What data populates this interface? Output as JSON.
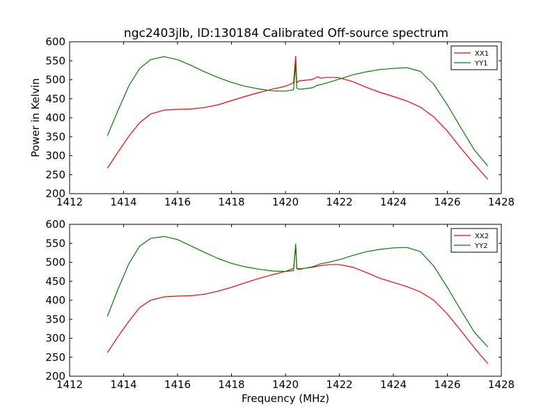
{
  "title": "ngc2403jlb, ID:130184 Calibrated Off-source spectrum",
  "colors": {
    "xx": "#ff0000",
    "yy": "#008000"
  },
  "chart_data": [
    {
      "type": "line",
      "ylabel": "Power in Kelvin",
      "xlabel": "",
      "xlim": [
        1412,
        1428
      ],
      "ylim": [
        200,
        600
      ],
      "xticks": [
        1412,
        1414,
        1416,
        1418,
        1420,
        1422,
        1424,
        1426,
        1428
      ],
      "yticks": [
        200,
        250,
        300,
        350,
        400,
        450,
        500,
        550,
        600
      ],
      "grid": false,
      "legend_position": "top-right",
      "series": [
        {
          "name": "XX1",
          "color": "#ff0000",
          "x": [
            1413.4,
            1413.8,
            1414.2,
            1414.6,
            1415.0,
            1415.5,
            1416.0,
            1416.5,
            1417.0,
            1417.5,
            1418.0,
            1418.5,
            1419.0,
            1419.5,
            1420.0,
            1420.3,
            1420.38,
            1420.42,
            1420.5,
            1420.8,
            1421.0,
            1421.2,
            1421.3,
            1421.5,
            1421.8,
            1422.0,
            1422.5,
            1423.0,
            1423.5,
            1424.0,
            1424.5,
            1425.0,
            1425.5,
            1426.0,
            1426.5,
            1427.0,
            1427.5
          ],
          "y": [
            267,
            310,
            352,
            387,
            410,
            420,
            422,
            423,
            427,
            434,
            445,
            456,
            466,
            475,
            483,
            492,
            562,
            492,
            497,
            499,
            501,
            508,
            504,
            506,
            506,
            505,
            495,
            480,
            467,
            456,
            444,
            428,
            402,
            365,
            320,
            278,
            238
          ]
        },
        {
          "name": "YY1",
          "color": "#008000",
          "x": [
            1413.4,
            1413.8,
            1414.2,
            1414.6,
            1415.0,
            1415.5,
            1416.0,
            1416.5,
            1417.0,
            1417.5,
            1418.0,
            1418.5,
            1419.0,
            1419.5,
            1420.0,
            1420.3,
            1420.38,
            1420.42,
            1420.5,
            1420.7,
            1421.0,
            1421.2,
            1421.3,
            1421.6,
            1422.0,
            1422.5,
            1423.0,
            1423.5,
            1424.0,
            1424.5,
            1425.0,
            1425.5,
            1426.0,
            1426.5,
            1427.0,
            1427.5
          ],
          "y": [
            353,
            420,
            485,
            530,
            553,
            561,
            553,
            538,
            521,
            506,
            493,
            483,
            476,
            471,
            470,
            474,
            540,
            478,
            475,
            476,
            479,
            486,
            487,
            493,
            502,
            513,
            521,
            527,
            530,
            532,
            522,
            488,
            434,
            374,
            315,
            273
          ]
        }
      ]
    },
    {
      "type": "line",
      "ylabel": "",
      "xlabel": "Frequency (MHz)",
      "xlim": [
        1412,
        1428
      ],
      "ylim": [
        200,
        600
      ],
      "xticks": [
        1412,
        1414,
        1416,
        1418,
        1420,
        1422,
        1424,
        1426,
        1428
      ],
      "yticks": [
        200,
        250,
        300,
        350,
        400,
        450,
        500,
        550,
        600
      ],
      "grid": false,
      "legend_position": "top-right",
      "series": [
        {
          "name": "XX2",
          "color": "#ff0000",
          "x": [
            1413.4,
            1413.8,
            1414.2,
            1414.6,
            1415.0,
            1415.5,
            1416.0,
            1416.5,
            1417.0,
            1417.5,
            1418.0,
            1418.5,
            1419.0,
            1419.5,
            1420.0,
            1420.3,
            1420.38,
            1420.42,
            1420.5,
            1420.8,
            1421.0,
            1421.3,
            1421.6,
            1422.0,
            1422.5,
            1423.0,
            1423.5,
            1424.0,
            1424.5,
            1425.0,
            1425.5,
            1426.0,
            1426.5,
            1427.0,
            1427.5
          ],
          "y": [
            262,
            305,
            345,
            381,
            400,
            409,
            411,
            412,
            416,
            424,
            434,
            446,
            457,
            467,
            476,
            484,
            545,
            484,
            483,
            485,
            487,
            491,
            494,
            494,
            487,
            473,
            458,
            447,
            436,
            422,
            400,
            364,
            320,
            275,
            233
          ]
        },
        {
          "name": "YY2",
          "color": "#008000",
          "x": [
            1413.4,
            1413.8,
            1414.2,
            1414.6,
            1415.0,
            1415.5,
            1416.0,
            1416.5,
            1417.0,
            1417.5,
            1418.0,
            1418.5,
            1419.0,
            1419.5,
            1420.0,
            1420.3,
            1420.38,
            1420.42,
            1420.5,
            1420.7,
            1421.0,
            1421.3,
            1421.6,
            1422.0,
            1422.5,
            1423.0,
            1423.5,
            1424.0,
            1424.5,
            1425.0,
            1425.5,
            1426.0,
            1426.5,
            1427.0,
            1427.5
          ],
          "y": [
            358,
            430,
            497,
            543,
            563,
            568,
            560,
            543,
            526,
            510,
            497,
            488,
            482,
            477,
            476,
            478,
            548,
            483,
            481,
            484,
            488,
            496,
            500,
            507,
            518,
            528,
            534,
            538,
            539,
            528,
            490,
            434,
            374,
            316,
            277
          ]
        }
      ]
    }
  ]
}
